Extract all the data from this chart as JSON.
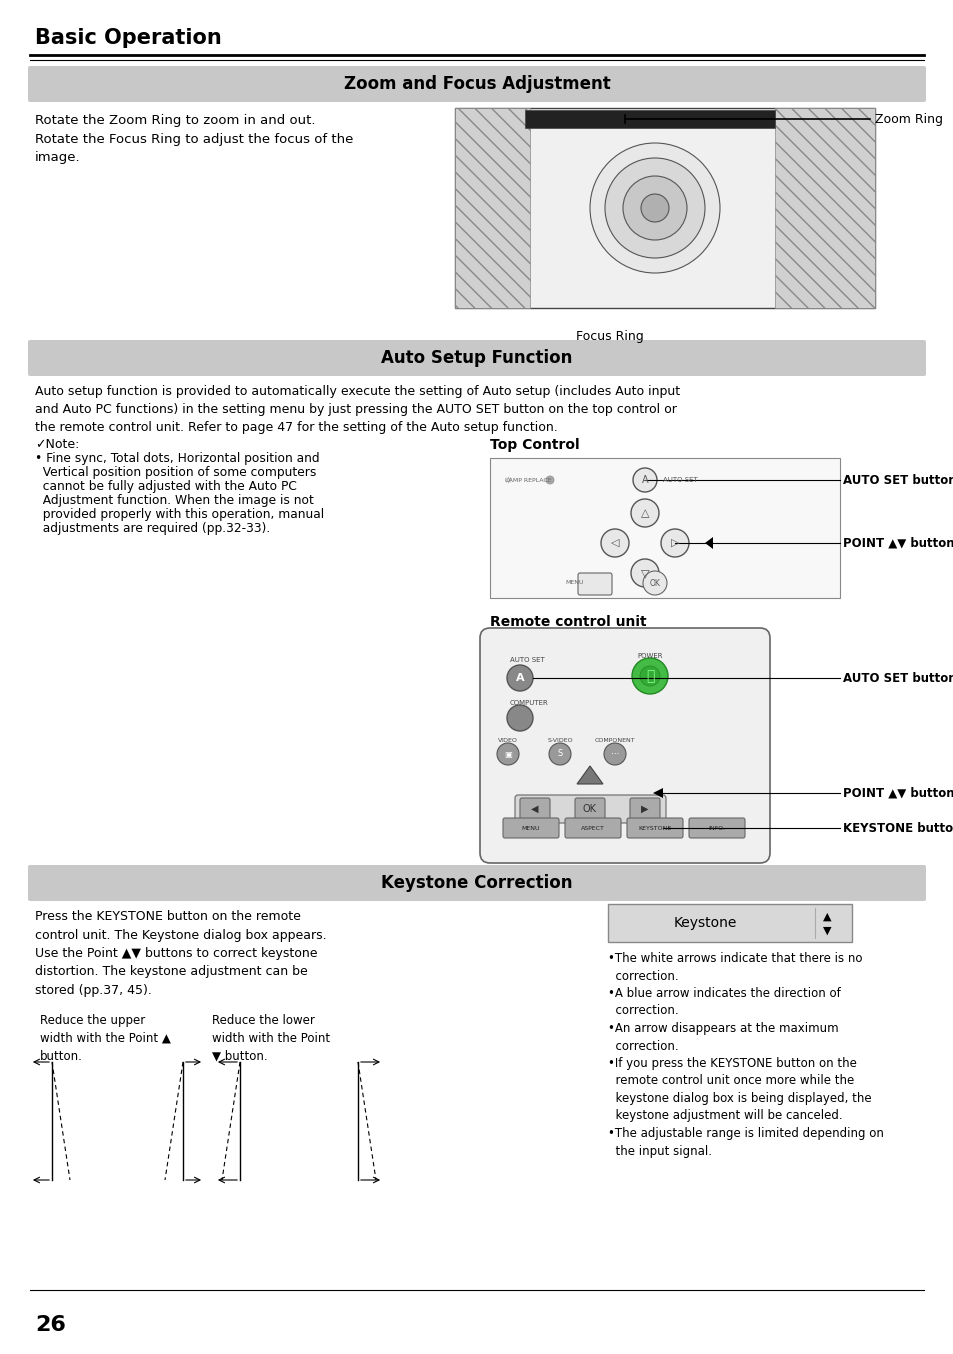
{
  "page_title": "Basic Operation",
  "page_number": "26",
  "bg": "#ffffff",
  "header_bg": "#c8c8c8",
  "section1_title": "Zoom and Focus Adjustment",
  "section1_text": "Rotate the Zoom Ring to zoom in and out.\nRotate the Focus Ring to adjust the focus of the\nimage.",
  "section1_label1": "Zoom Ring",
  "section1_label2": "Focus Ring",
  "section2_title": "Auto Setup Function",
  "section2_text": "Auto setup function is provided to automatically execute the setting of Auto setup (includes Auto input\nand Auto PC functions) in the setting menu by just pressing the AUTO SET button on the top control or\nthe remote control unit. Refer to page 47 for the setting of the Auto setup function.",
  "note_title": "✓Note:",
  "note_line1": "• Fine sync, Total dots, Horizontal position and",
  "note_line2": "  Vertical position position of some computers",
  "note_line3": "  cannot be fully adjusted with the Auto PC",
  "note_line4": "  Adjustment function. When the image is not",
  "note_line5": "  provided properly with this operation, manual",
  "note_line6": "  adjustments are required (pp.32-33).",
  "tc_title": "Top Control",
  "tc_label1": "AUTO SET button",
  "tc_label2": "POINT ▲▼ buttons",
  "rc_title": "Remote control unit",
  "rc_label1": "AUTO SET button",
  "rc_label2": "POINT ▲▼ buttons",
  "rc_label3": "KEYSTONE button",
  "section3_title": "Keystone Correction",
  "section3_text": "Press the KEYSTONE button on the remote\ncontrol unit. The Keystone dialog box appears.\nUse the Point ▲▼ buttons to correct keystone\ndistortion. The keystone adjustment can be\nstored (pp.37, 45).",
  "s3_label_upper": "Reduce the upper\nwidth with the Point ▲\nbutton.",
  "s3_label_lower": "Reduce the lower\nwidth with the Point\n▼ button.",
  "s3_bullets": "•The white arrows indicate that there is no\n  correction.\n•A blue arrow indicates the direction of\n  correction.\n•An arrow disappears at the maximum\n  correction.\n•If you press the KEYSTONE button on the\n  remote control unit once more while the\n  keystone dialog box is being displayed, the\n  keystone adjustment will be canceled.\n•The adjustable range is limited depending on\n  the input signal."
}
